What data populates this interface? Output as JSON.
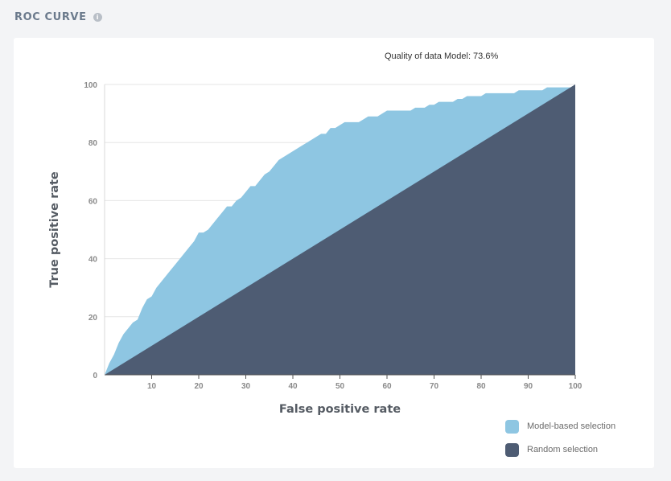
{
  "header": {
    "title": "ROC CURVE",
    "info_icon": "info-icon",
    "info_glyph": "i"
  },
  "chart_data": {
    "type": "area",
    "title": "Quality of data Model: 73.6%",
    "xlabel": "False positive rate",
    "ylabel": "True positive rate",
    "xlim": [
      0,
      100
    ],
    "ylim": [
      0,
      100
    ],
    "xticks": [
      10,
      20,
      30,
      40,
      50,
      60,
      70,
      80,
      90,
      100
    ],
    "yticks": [
      0,
      20,
      40,
      60,
      80,
      100
    ],
    "grid": "horizontal",
    "legend_position": "bottom-right",
    "colors": {
      "model": "#8ec6e2",
      "random": "#4e5c73"
    },
    "series": [
      {
        "name": "Model-based selection",
        "x": [
          0,
          1,
          2,
          3,
          4,
          5,
          6,
          7,
          8,
          9,
          10,
          11,
          12,
          13,
          14,
          15,
          16,
          17,
          18,
          19,
          20,
          21,
          22,
          23,
          24,
          25,
          26,
          27,
          28,
          29,
          30,
          31,
          32,
          33,
          34,
          35,
          36,
          37,
          38,
          39,
          40,
          41,
          42,
          43,
          44,
          45,
          46,
          47,
          48,
          49,
          50,
          51,
          52,
          53,
          54,
          55,
          56,
          57,
          58,
          59,
          60,
          61,
          62,
          63,
          64,
          65,
          66,
          67,
          68,
          69,
          70,
          71,
          72,
          73,
          74,
          75,
          76,
          77,
          78,
          79,
          80,
          81,
          82,
          83,
          84,
          85,
          86,
          87,
          88,
          89,
          90,
          91,
          92,
          93,
          94,
          95,
          96,
          97,
          98,
          99,
          100
        ],
        "y": [
          0,
          4,
          7,
          11,
          14,
          16,
          18,
          19,
          23,
          26,
          27,
          30,
          32,
          34,
          36,
          38,
          40,
          42,
          44,
          46,
          49,
          49,
          50,
          52,
          54,
          56,
          58,
          58,
          60,
          61,
          63,
          65,
          65,
          67,
          69,
          70,
          72,
          74,
          75,
          76,
          77,
          78,
          79,
          80,
          81,
          82,
          83,
          83,
          85,
          85,
          86,
          87,
          87,
          87,
          87,
          88,
          89,
          89,
          89,
          90,
          91,
          91,
          91,
          91,
          91,
          91,
          92,
          92,
          92,
          93,
          93,
          94,
          94,
          94,
          94,
          95,
          95,
          96,
          96,
          96,
          96,
          97,
          97,
          97,
          97,
          97,
          97,
          97,
          98,
          98,
          98,
          98,
          98,
          98,
          99,
          99,
          99,
          99,
          99,
          99,
          100
        ]
      },
      {
        "name": "Random selection",
        "x": [
          0,
          100
        ],
        "y": [
          0,
          100
        ]
      }
    ]
  }
}
